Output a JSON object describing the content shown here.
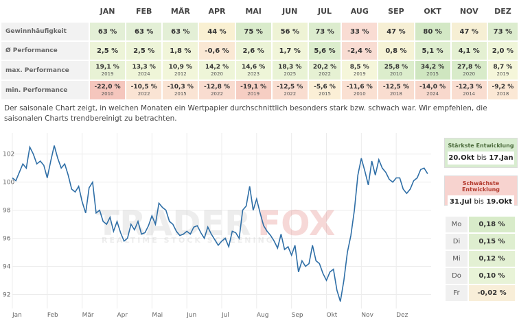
{
  "table": {
    "months": [
      "JAN",
      "FEB",
      "MÄR",
      "APR",
      "MAI",
      "JUN",
      "JUL",
      "AUG",
      "SEP",
      "OKT",
      "NOV",
      "DEZ"
    ],
    "rows": [
      {
        "label": "Gewinnhäufigkeit",
        "values": [
          "63 %",
          "63 %",
          "63 %",
          "44 %",
          "75 %",
          "56 %",
          "73 %",
          "33 %",
          "47 %",
          "80 %",
          "47 %",
          "73 %"
        ],
        "colors": [
          "#e3efd6",
          "#e3efd6",
          "#e3efd6",
          "#f9f0d2",
          "#d9ebcb",
          "#eef3d5",
          "#dcecce",
          "#f9dcd3",
          "#f6efd4",
          "#d3e8c5",
          "#f6efd4",
          "#dcecce"
        ]
      },
      {
        "label": "Ø Performance",
        "values": [
          "2,5 %",
          "2,5 %",
          "1,8 %",
          "-0,6 %",
          "2,6 %",
          "1,7 %",
          "5,6 %",
          "-2,4 %",
          "0,8 %",
          "5,1 %",
          "4,1 %",
          "2,0 %"
        ],
        "colors": [
          "#edf4d8",
          "#edf4d8",
          "#f1f5d9",
          "#fae8d4",
          "#ebf3d6",
          "#f1f5d9",
          "#dcedcd",
          "#f8dcd2",
          "#f6f3d6",
          "#dfeecf",
          "#e4f0d2",
          "#eff5d8"
        ]
      },
      {
        "label": "max. Performance",
        "values": [
          "19,1 %",
          "13,3 %",
          "10,9 %",
          "14,2 %",
          "14,6 %",
          "18,3 %",
          "20,2 %",
          "8,5 %",
          "25,8 %",
          "34,2 %",
          "27,8 %",
          "8,7 %"
        ],
        "years": [
          "2019",
          "2024",
          "2012",
          "2020",
          "2023",
          "2025",
          "2022",
          "2019",
          "2010",
          "2015",
          "2020",
          "2019"
        ],
        "colors": [
          "#e8f2d5",
          "#eff5d8",
          "#f2f6da",
          "#eef5d8",
          "#eef5d8",
          "#e9f3d5",
          "#e6f1d3",
          "#f5f6da",
          "#dcedcc",
          "#cfe6c0",
          "#d8ebc9",
          "#f5f6da"
        ]
      },
      {
        "label": "min. Performance",
        "values": [
          "-22,0 %",
          "-10,5 %",
          "-10,3 %",
          "-12,8 %",
          "-19,1 %",
          "-12,5 %",
          "-5,6 %",
          "-11,6 %",
          "-12,5 %",
          "-14,0 %",
          "-12,3 %",
          "-9,2 %"
        ],
        "years": [
          "2010",
          "2022",
          "2015",
          "2022",
          "2019",
          "2022",
          "2015",
          "2010",
          "2018",
          "2024",
          "2014",
          "2018"
        ],
        "colors": [
          "#f5c6bd",
          "#fae4d4",
          "#fae4d4",
          "#f9dcd0",
          "#f6cec3",
          "#f9ddd0",
          "#fbefd6",
          "#fae0d2",
          "#f9ddd0",
          "#f8d8cc",
          "#f9ddd0",
          "#fbe8d5"
        ]
      }
    ]
  },
  "description": "Der saisonale Chart zeigt, in welchen Monaten ein Wertpapier durchschnittlich besonders stark bzw. schwach war. Wir empfehlen, die saisonalen Charts trendbereinigt zu betrachten.",
  "watermark": {
    "brand_left": "TRADER",
    "brand_right": "FOX",
    "tagline": "REALTIME STOCK SCREENING"
  },
  "strongest": {
    "title": "Stärkste Entwicklung",
    "from": "20.Okt",
    "bis": "bis",
    "to": "17.Jan"
  },
  "weakest": {
    "title": "Schwächste Entwicklung",
    "from": "31.Jul",
    "bis": "bis",
    "to": "19.Okt"
  },
  "weekdays": [
    {
      "day": "Mo",
      "value": "0,18 %",
      "color": "#d8ebc9"
    },
    {
      "day": "Di",
      "value": "0,15 %",
      "color": "#deeecf"
    },
    {
      "day": "Mi",
      "value": "0,12 %",
      "color": "#e3f0d3"
    },
    {
      "day": "Do",
      "value": "0,10 %",
      "color": "#e8f3d7"
    },
    {
      "day": "Fr",
      "value": "-0,02 %",
      "color": "#f8eed8"
    }
  ],
  "chart_data": {
    "type": "line",
    "x_tick_labels": [
      "Jan",
      "Feb",
      "Mär",
      "Apr",
      "Mai",
      "Jun",
      "Jul",
      "Aug",
      "Sep",
      "Okt",
      "Nov",
      "Dez"
    ],
    "y_tick_labels": [
      "92",
      "94",
      "96",
      "98",
      "100",
      "102"
    ],
    "ylim": [
      91,
      103.5
    ],
    "grid": true,
    "series": [
      {
        "color": "#2e6ea6",
        "x": [
          0,
          0.1,
          0.2,
          0.3,
          0.4,
          0.5,
          0.6,
          0.7,
          0.8,
          0.9,
          1.0,
          1.1,
          1.2,
          1.3,
          1.4,
          1.5,
          1.6,
          1.7,
          1.8,
          1.9,
          2.0,
          2.1,
          2.2,
          2.3,
          2.4,
          2.5,
          2.6,
          2.7,
          2.8,
          2.9,
          3.0,
          3.1,
          3.2,
          3.3,
          3.4,
          3.5,
          3.6,
          3.7,
          3.8,
          3.9,
          4.0,
          4.1,
          4.2,
          4.3,
          4.4,
          4.5,
          4.6,
          4.7,
          4.8,
          4.9,
          5.0,
          5.1,
          5.2,
          5.3,
          5.4,
          5.5,
          5.6,
          5.7,
          5.8,
          5.9,
          6.0,
          6.1,
          6.2,
          6.3,
          6.4,
          6.5,
          6.6,
          6.7,
          6.8,
          6.9,
          7.0,
          7.1,
          7.2,
          7.3,
          7.4,
          7.5,
          7.6,
          7.7,
          7.8,
          7.9,
          8.0,
          8.1,
          8.2,
          8.3,
          8.4,
          8.5,
          8.6,
          8.7,
          8.8,
          8.9,
          9.0,
          9.1,
          9.2,
          9.3,
          9.4,
          9.5,
          9.6,
          9.7,
          9.8,
          9.9,
          10.0,
          10.1,
          10.2,
          10.3,
          10.4,
          10.5,
          10.6,
          10.7,
          10.8,
          10.9,
          11.0,
          11.1,
          11.2,
          11.3,
          11.4,
          11.5,
          11.6,
          11.7,
          11.8,
          11.9
        ],
        "values": [
          100.3,
          100.1,
          100.7,
          101.3,
          101.0,
          102.5,
          102.0,
          101.3,
          101.5,
          101.2,
          100.3,
          101.5,
          102.6,
          101.7,
          101.0,
          101.3,
          100.5,
          99.5,
          99.3,
          99.7,
          98.6,
          97.8,
          99.6,
          100.0,
          97.8,
          98.0,
          97.2,
          97.0,
          97.5,
          96.5,
          97.2,
          96.4,
          95.8,
          96.0,
          97.0,
          96.6,
          97.2,
          96.3,
          96.4,
          96.9,
          97.6,
          97.0,
          98.5,
          98.2,
          98.0,
          97.2,
          97.0,
          96.5,
          96.2,
          96.3,
          96.5,
          96.3,
          96.8,
          96.9,
          96.4,
          96.0,
          96.8,
          96.3,
          95.9,
          95.5,
          95.8,
          96.0,
          95.4,
          96.5,
          96.4,
          96.0,
          98.0,
          98.3,
          99.7,
          98.0,
          98.8,
          97.8,
          96.9,
          96.5,
          96.2,
          95.8,
          95.3,
          96.3,
          95.2,
          95.4,
          94.8,
          95.5,
          93.6,
          94.4,
          94.0,
          94.2,
          95.5,
          94.4,
          94.2,
          93.5,
          93.0,
          93.6,
          93.8,
          92.3,
          91.5,
          93.0,
          95.0,
          96.2,
          98.0,
          100.5,
          101.7,
          100.8,
          99.8,
          101.5,
          100.5,
          101.6,
          101.0,
          100.7,
          100.2,
          100.0,
          100.3,
          100.3,
          99.5,
          99.2,
          99.5,
          100.1,
          100.3,
          100.9,
          101.0,
          100.6
        ]
      }
    ]
  }
}
